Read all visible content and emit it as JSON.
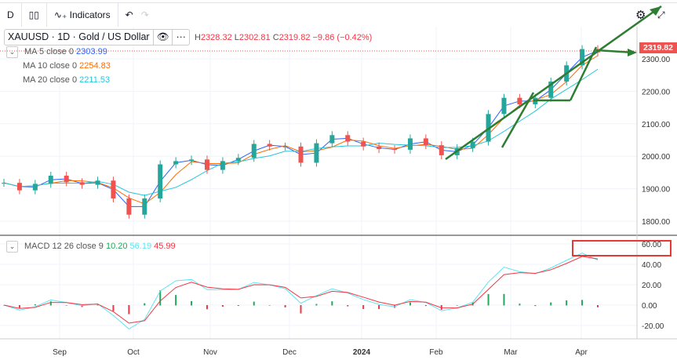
{
  "toolbar": {
    "interval": "D",
    "indicators": "Indicators"
  },
  "header": {
    "symbol": "XAUUSD · 1D · Gold / US Dollar",
    "H": "2328.32",
    "L": "2302.81",
    "C": "2319.82",
    "change": "−9.86 (−0.42%)"
  },
  "ma": [
    {
      "label": "MA 5 close 0",
      "value": "2303.99",
      "color": "#2962ff"
    },
    {
      "label": "MA 10 close 0",
      "value": "2254.83",
      "color": "#ff6d00"
    },
    {
      "label": "MA 20 close 0",
      "value": "2211.53",
      "color": "#26c6da"
    }
  ],
  "macd": {
    "label": "MACD 12 26 close 9",
    "hist": "10.20",
    "macd": "56.19",
    "signal": "45.99",
    "colors": {
      "hist": "#26a65b",
      "macd": "#5ee5f0",
      "signal": "#f23645"
    }
  },
  "last_price": "2319.82",
  "chart_data": {
    "type": "candlestick",
    "price_ticks": [
      "2300.00",
      "2200.00",
      "2100.00",
      "2000.00",
      "1900.00",
      "1800.00"
    ],
    "macd_ticks": [
      "60.00",
      "40.00",
      "20.00",
      "0.00",
      "-20.00"
    ],
    "x_ticks": [
      "Sep",
      "Oct",
      "Nov",
      "Dec",
      "2024",
      "Feb",
      "Mar",
      "Apr"
    ],
    "ylim": [
      1780,
      2340
    ],
    "dates": [
      "Aug 10",
      "Aug 17",
      "Aug 24",
      "Aug 31",
      "Sep 7",
      "Sep 14",
      "Sep 21",
      "Sep 28",
      "Oct 5",
      "Oct 12",
      "Oct 19",
      "Oct 26",
      "Nov 2",
      "Nov 9",
      "Nov 16",
      "Nov 23",
      "Nov 30",
      "Dec 4",
      "Dec 7",
      "Dec 12",
      "Dec 19",
      "Dec 28",
      "Jan 4",
      "Jan 11",
      "Jan 18",
      "Jan 25",
      "Feb 1",
      "Feb 8",
      "Feb 15",
      "Feb 22",
      "Feb 29",
      "Mar 5",
      "Mar 8",
      "Mar 14",
      "Mar 21",
      "Mar 28",
      "Apr 2",
      "Apr 5",
      "Apr 8"
    ],
    "close": [
      1918,
      1895,
      1915,
      1940,
      1920,
      1912,
      1925,
      1870,
      1820,
      1870,
      1975,
      1985,
      1990,
      1958,
      1985,
      1995,
      2038,
      2030,
      2030,
      1980,
      2040,
      2065,
      2045,
      2030,
      2022,
      2020,
      2055,
      2034,
      2003,
      2025,
      2045,
      2130,
      2180,
      2160,
      2180,
      2230,
      2280,
      2330,
      2319.82
    ]
  }
}
